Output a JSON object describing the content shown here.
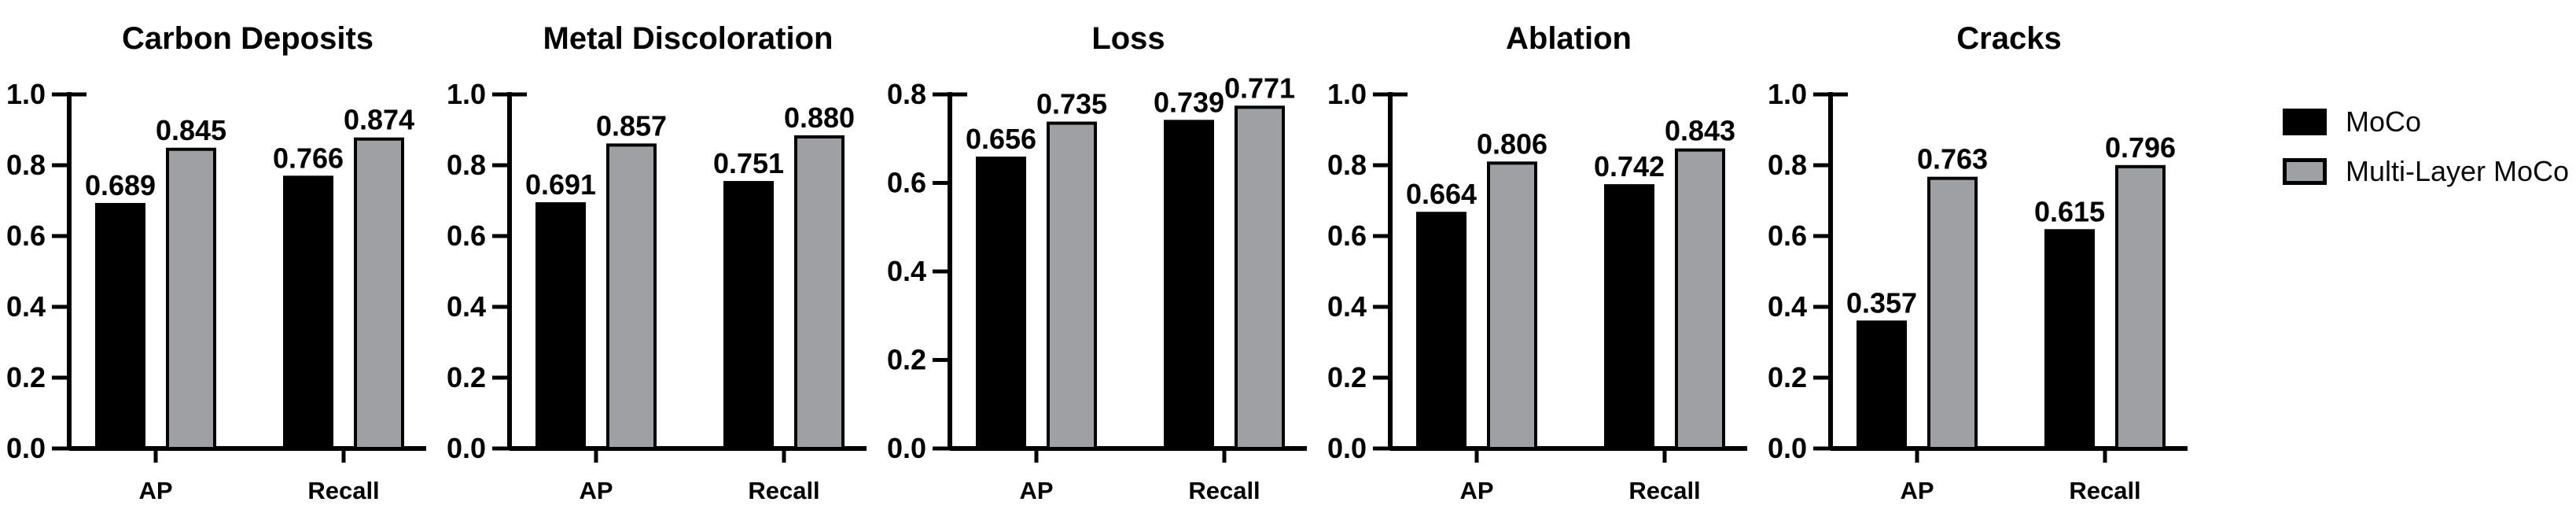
{
  "chart_data": [
    {
      "type": "bar",
      "title": "Carbon Deposits",
      "categories": [
        "AP",
        "Recall"
      ],
      "series": [
        {
          "name": "MoCo",
          "color": "#000000",
          "values": [
            0.689,
            0.766
          ]
        },
        {
          "name": "Multi-Layer MoCo",
          "color": "#9EA0A3",
          "values": [
            0.845,
            0.874
          ]
        }
      ],
      "value_labels": [
        [
          "0.689",
          "0.766"
        ],
        [
          "0.845",
          "0.874"
        ]
      ],
      "ylim": [
        0,
        1.0
      ],
      "ytick_labels": [
        "0.0",
        "0.2",
        "0.4",
        "0.6",
        "0.8",
        "1.0"
      ],
      "grid": false,
      "legend_position": "none"
    },
    {
      "type": "bar",
      "title": "Metal Discoloration",
      "categories": [
        "AP",
        "Recall"
      ],
      "series": [
        {
          "name": "MoCo",
          "color": "#000000",
          "values": [
            0.691,
            0.751
          ]
        },
        {
          "name": "Multi-Layer MoCo",
          "color": "#9EA0A3",
          "values": [
            0.857,
            0.88
          ]
        }
      ],
      "value_labels": [
        [
          "0.691",
          "0.751"
        ],
        [
          "0.857",
          "0.880"
        ]
      ],
      "ylim": [
        0,
        1.0
      ],
      "ytick_labels": [
        "0.0",
        "0.2",
        "0.4",
        "0.6",
        "0.8",
        "1.0"
      ],
      "grid": false,
      "legend_position": "none"
    },
    {
      "type": "bar",
      "title": "Loss",
      "categories": [
        "AP",
        "Recall"
      ],
      "series": [
        {
          "name": "MoCo",
          "color": "#000000",
          "values": [
            0.656,
            0.739
          ]
        },
        {
          "name": "Multi-Layer MoCo",
          "color": "#9EA0A3",
          "values": [
            0.735,
            0.771
          ]
        }
      ],
      "value_labels": [
        [
          "0.656",
          "0.739"
        ],
        [
          "0.735",
          "0.771"
        ]
      ],
      "ylim": [
        0,
        0.8
      ],
      "ytick_labels": [
        "0.0",
        "0.2",
        "0.4",
        "0.6",
        "0.8"
      ],
      "grid": false,
      "legend_position": "none"
    },
    {
      "type": "bar",
      "title": "Ablation",
      "categories": [
        "AP",
        "Recall"
      ],
      "series": [
        {
          "name": "MoCo",
          "color": "#000000",
          "values": [
            0.664,
            0.742
          ]
        },
        {
          "name": "Multi-Layer MoCo",
          "color": "#9EA0A3",
          "values": [
            0.806,
            0.843
          ]
        }
      ],
      "value_labels": [
        [
          "0.664",
          "0.742"
        ],
        [
          "0.806",
          "0.843"
        ]
      ],
      "ylim": [
        0,
        1.0
      ],
      "ytick_labels": [
        "0.0",
        "0.2",
        "0.4",
        "0.6",
        "0.8",
        "1.0"
      ],
      "grid": false,
      "legend_position": "none"
    },
    {
      "type": "bar",
      "title": "Cracks",
      "categories": [
        "AP",
        "Recall"
      ],
      "series": [
        {
          "name": "MoCo",
          "color": "#000000",
          "values": [
            0.357,
            0.615
          ]
        },
        {
          "name": "Multi-Layer MoCo",
          "color": "#9EA0A3",
          "values": [
            0.763,
            0.796
          ]
        }
      ],
      "value_labels": [
        [
          "0.357",
          "0.615"
        ],
        [
          "0.763",
          "0.796"
        ]
      ],
      "ylim": [
        0,
        1.0
      ],
      "ytick_labels": [
        "0.0",
        "0.2",
        "0.4",
        "0.6",
        "0.8",
        "1.0"
      ],
      "grid": false,
      "legend_position": "none"
    }
  ],
  "legend": {
    "position": "right",
    "items": [
      {
        "label": "MoCo",
        "swatch_color": "#000000"
      },
      {
        "label": "Multi-Layer MoCo",
        "swatch_color": "#9EA0A3"
      }
    ]
  }
}
